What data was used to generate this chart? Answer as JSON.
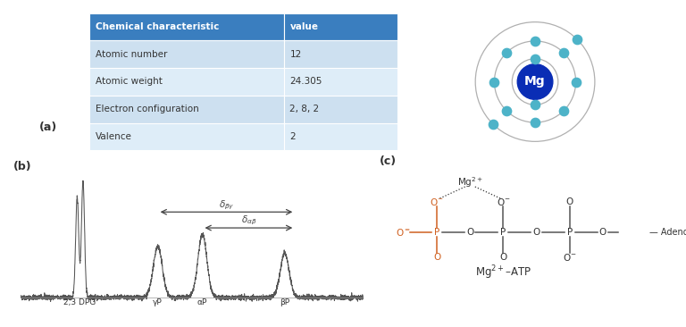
{
  "title_a": "(a)",
  "title_b": "(b)",
  "title_c": "(c)",
  "table_header": [
    "Chemical characteristic",
    "value"
  ],
  "table_rows": [
    [
      "Atomic number",
      "12"
    ],
    [
      "Atomic weight",
      "24.305"
    ],
    [
      "Electron configuration",
      "2, 8, 2"
    ],
    [
      "Valence",
      "2"
    ]
  ],
  "table_header_color": "#3a7ebf",
  "table_row_color": "#cde0f0",
  "table_alt_color": "#deedf8",
  "nmr_labels": [
    "2,3 DPG",
    "γP",
    "αP",
    "βP"
  ],
  "atom_color": "#4db3c8",
  "nucleus_color": "#0a2db5",
  "line_color": "#a0a0a0",
  "orange_color": "#d06020",
  "dark_color": "#333333",
  "border_color": "#a8d4e8"
}
